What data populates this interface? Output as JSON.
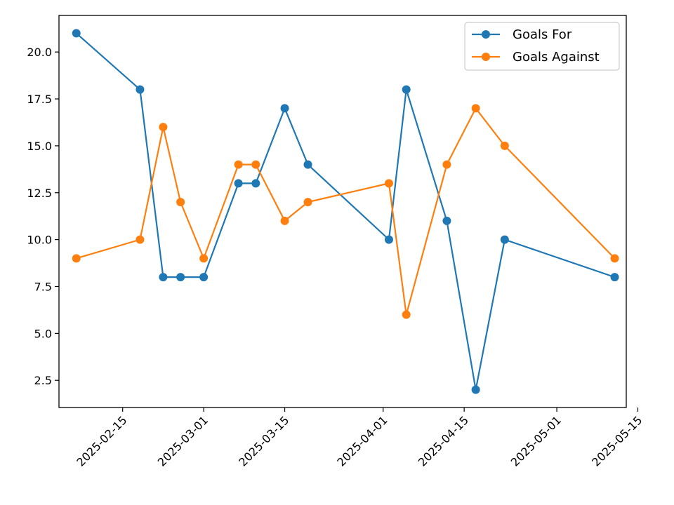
{
  "chart_data": {
    "type": "line",
    "title": "",
    "xlabel": "",
    "ylabel": "",
    "x": [
      "2025-02-07",
      "2025-02-18",
      "2025-02-22",
      "2025-02-25",
      "2025-03-01",
      "2025-03-07",
      "2025-03-10",
      "2025-03-15",
      "2025-03-19",
      "2025-04-02",
      "2025-04-05",
      "2025-04-12",
      "2025-04-17",
      "2025-04-22",
      "2025-05-11"
    ],
    "series": [
      {
        "name": "Goals For",
        "color": "#1f77b4",
        "values": [
          21,
          18,
          8,
          8,
          8,
          13,
          13,
          17,
          14,
          10,
          18,
          11,
          2,
          10,
          8
        ]
      },
      {
        "name": "Goals Against",
        "color": "#ff7f0e",
        "values": [
          9,
          10,
          16,
          12,
          9,
          14,
          14,
          11,
          12,
          13,
          6,
          14,
          17,
          15,
          9
        ]
      }
    ],
    "xlim": [
      "2025-02-04",
      "2025-05-13"
    ],
    "ylim": [
      1.05,
      21.95
    ],
    "yticks": [
      "2.5",
      "5.0",
      "7.5",
      "10.0",
      "12.5",
      "15.0",
      "17.5",
      "20.0"
    ],
    "xticks": [
      "2025-02-15",
      "2025-03-01",
      "2025-03-15",
      "2025-04-01",
      "2025-04-15",
      "2025-05-01",
      "2025-05-15"
    ],
    "grid": false,
    "legend": "top-right",
    "marker": "circle"
  }
}
